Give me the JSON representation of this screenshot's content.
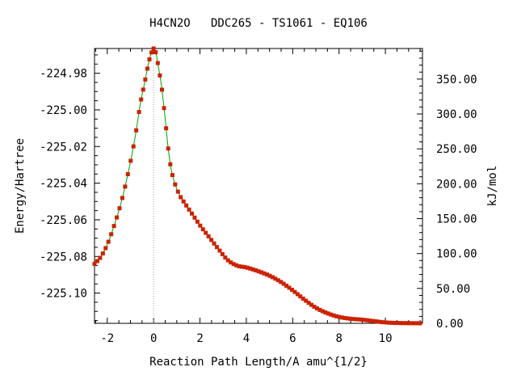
{
  "chart_data": {
    "type": "line",
    "title": "H4CN2O   DDC265 - TS1061 - EQ106",
    "xlabel": "Reaction Path Length/A amu^{1/2}",
    "ylabel": "Energy/Hartree",
    "y2label": "kJ/mol",
    "xlim": [
      -2.55,
      11.6
    ],
    "ylim": [
      -225.1165,
      -224.9665
    ],
    "x_ticks": [
      {
        "value": -2,
        "label": "-2"
      },
      {
        "value": 0,
        "label": "0"
      },
      {
        "value": 2,
        "label": "2"
      },
      {
        "value": 4,
        "label": "4"
      },
      {
        "value": 6,
        "label": "6"
      },
      {
        "value": 8,
        "label": "8"
      },
      {
        "value": 10,
        "label": "10"
      }
    ],
    "y_ticks": [
      {
        "value": -224.98,
        "label": "-224.98"
      },
      {
        "value": -225.0,
        "label": "-225.00"
      },
      {
        "value": -225.02,
        "label": "-225.02"
      },
      {
        "value": -225.04,
        "label": "-225.04"
      },
      {
        "value": -225.06,
        "label": "-225.06"
      },
      {
        "value": -225.08,
        "label": "-225.08"
      },
      {
        "value": -225.1,
        "label": "-225.10"
      }
    ],
    "y2_reference_energy": -225.1165,
    "y2_ticks": [
      {
        "value": 0,
        "label": "0.00"
      },
      {
        "value": 50,
        "label": "50.00"
      },
      {
        "value": 100,
        "label": "100.00"
      },
      {
        "value": 150,
        "label": "150.00"
      },
      {
        "value": 200,
        "label": "200.00"
      },
      {
        "value": 250,
        "label": "250.00"
      },
      {
        "value": 300,
        "label": "300.00"
      },
      {
        "value": 350,
        "label": "350.00"
      }
    ],
    "ts_marker_x": 0,
    "line_color": "#00a000",
    "marker_color": "#cc2200",
    "grid": false,
    "curve_points": [
      [
        -2.55,
        -225.084
      ],
      [
        -2.3,
        -225.0806
      ],
      [
        -2.0,
        -225.0735
      ],
      [
        -1.7,
        -225.063
      ],
      [
        -1.4,
        -225.0505
      ],
      [
        -1.1,
        -225.0345
      ],
      [
        -0.8,
        -225.015
      ],
      [
        -0.55,
        -224.995
      ],
      [
        -0.4,
        -224.986
      ],
      [
        -0.22,
        -224.9745
      ],
      [
        -0.1,
        -224.969
      ],
      [
        0.0,
        -224.9665
      ],
      [
        0.1,
        -224.969
      ],
      [
        0.2,
        -224.976
      ],
      [
        0.35,
        -224.988
      ],
      [
        0.5,
        -225.005
      ],
      [
        0.62,
        -225.02
      ],
      [
        0.75,
        -225.032
      ],
      [
        0.9,
        -225.0395
      ],
      [
        1.1,
        -225.046
      ],
      [
        1.4,
        -225.052
      ],
      [
        1.7,
        -225.0575
      ],
      [
        2.0,
        -225.063
      ],
      [
        2.4,
        -225.0695
      ],
      [
        2.8,
        -225.076
      ],
      [
        3.2,
        -225.082
      ],
      [
        3.6,
        -225.085
      ],
      [
        4.0,
        -225.086
      ],
      [
        4.5,
        -225.088
      ],
      [
        5.0,
        -225.0905
      ],
      [
        5.5,
        -225.094
      ],
      [
        6.0,
        -225.0985
      ],
      [
        6.5,
        -225.1035
      ],
      [
        7.0,
        -225.108
      ],
      [
        7.5,
        -225.111
      ],
      [
        8.0,
        -225.113
      ],
      [
        8.5,
        -225.114
      ],
      [
        9.0,
        -225.1145
      ],
      [
        9.5,
        -225.1153
      ],
      [
        10.0,
        -225.116
      ],
      [
        10.5,
        -225.1163
      ],
      [
        11.0,
        -225.1164
      ],
      [
        11.6,
        -225.1165
      ]
    ]
  }
}
